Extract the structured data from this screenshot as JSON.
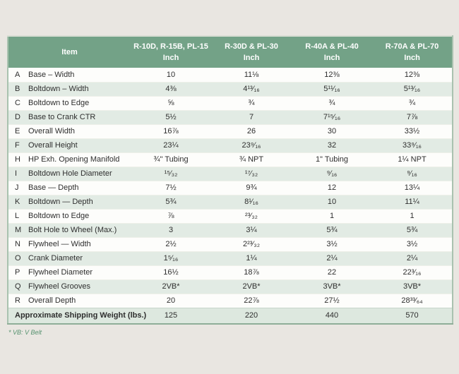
{
  "colors": {
    "page_bg": "#e9e6e1",
    "header_bg": "#73a287",
    "header_text": "#ffffff",
    "row_alt": "#e2ebe4",
    "weight_row_bg": "#dde8df",
    "table_border": "#a9c2af",
    "table_border_strong": "#8fae98",
    "text_color": "#2e2e2e",
    "footnote_color": "#55916e"
  },
  "table": {
    "header": {
      "item_label": "Item",
      "unit_label": "Inch",
      "columns": [
        {
          "line1": "R-10D, R-15B, PL-15",
          "line2": "Inch"
        },
        {
          "line1": "R-30D & PL-30",
          "line2": "Inch"
        },
        {
          "line1": "R-40A & PL-40",
          "line2": "Inch"
        },
        {
          "line1": "R-70A & PL-70",
          "line2": "Inch"
        }
      ]
    },
    "rows": [
      {
        "letter": "A",
        "item": "Base – Width",
        "values": [
          "10",
          "11⅛",
          "12⅜",
          "12⅜"
        ]
      },
      {
        "letter": "B",
        "item": "Boltdown – Width",
        "values": [
          "4⅜",
          "4¹³⁄₁₆",
          "5¹¹⁄₁₆",
          "5¹³⁄₁₆"
        ]
      },
      {
        "letter": "C",
        "item": "Boltdown to Edge",
        "values": [
          "⅝",
          "¾",
          "¾",
          "¾"
        ]
      },
      {
        "letter": "D",
        "item": "Base to Crank CTR",
        "values": [
          "5½",
          "7",
          "7¹⁵⁄₁₆",
          "7⅞"
        ]
      },
      {
        "letter": "E",
        "item": "Overall Width",
        "values": [
          "16⅞",
          "26",
          "30",
          "33½"
        ]
      },
      {
        "letter": "F",
        "item": "Overall Height",
        "values": [
          "23¼",
          "23⁹⁄₁₆",
          "32",
          "33⁹⁄₁₆"
        ]
      },
      {
        "letter": "H",
        "item": "HP Exh. Opening Manifold",
        "values": [
          "¾\" Tubing",
          "¾ NPT",
          "1\" Tubing",
          "1¼ NPT"
        ]
      },
      {
        "letter": "I",
        "item": "Boltdown Hole Diameter",
        "values": [
          "¹⁵⁄₃₂",
          "¹⁷⁄₃₂",
          "⁹⁄₁₆",
          "⁹⁄₁₆"
        ]
      },
      {
        "letter": "J",
        "item": "Base — Depth",
        "values": [
          "7½",
          "9¾",
          "12",
          "13¼"
        ]
      },
      {
        "letter": "K",
        "item": "Boltdown — Depth",
        "values": [
          "5¾",
          "8¹⁄₁₆",
          "10",
          "11¼"
        ]
      },
      {
        "letter": "L",
        "item": "Boltdown to Edge",
        "values": [
          "⅞",
          "²³⁄₃₂",
          "1",
          "1"
        ]
      },
      {
        "letter": "M",
        "item": "Bolt Hole to Wheel (Max.)",
        "values": [
          "3",
          "3¼",
          "5¾",
          "5¾"
        ]
      },
      {
        "letter": "N",
        "item": "Flywheel — Width",
        "values": [
          "2½",
          "2²³⁄₃₂",
          "3½",
          "3½"
        ]
      },
      {
        "letter": "O",
        "item": "Crank Diameter",
        "values": [
          "1⁵⁄₁₆",
          "1¼",
          "2¼",
          "2¼"
        ]
      },
      {
        "letter": "P",
        "item": "Flywheel Diameter",
        "values": [
          "16½",
          "18⅞",
          "22",
          "22³⁄₁₆"
        ]
      },
      {
        "letter": "Q",
        "item": "Flywheel Grooves",
        "values": [
          "2VB*",
          "2VB*",
          "3VB*",
          "3VB*"
        ]
      },
      {
        "letter": "R",
        "item": "Overall Depth",
        "values": [
          "20",
          "22⅞",
          "27½",
          "28³³⁄₆₄"
        ]
      }
    ],
    "footer": {
      "label": "Approximate Shipping Weight (lbs.)",
      "values": [
        "125",
        "220",
        "440",
        "570"
      ]
    },
    "footnote": "* VB: V Belt"
  }
}
